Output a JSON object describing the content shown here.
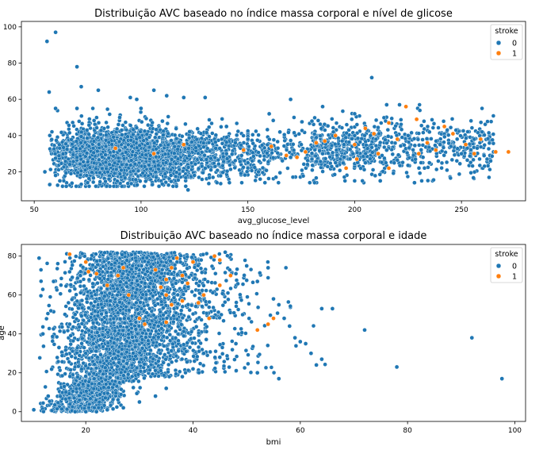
{
  "colors": {
    "stroke_0": "#1f77b4",
    "stroke_1": "#ff7f0e",
    "point_edge": "#ffffff"
  },
  "chart_data": [
    {
      "type": "scatter",
      "title": "Distribuição AVC baseado no índice massa corporal e nível de glicose",
      "xlabel": "avg_glucose_level",
      "ylabel": "",
      "xlim": [
        44,
        280
      ],
      "ylim": [
        4,
        103
      ],
      "xticks": [
        50,
        100,
        150,
        200,
        250
      ],
      "yticks": [
        20,
        40,
        60,
        80,
        100
      ],
      "grid": false,
      "legend": {
        "title": "stroke",
        "entries": [
          "0",
          "1"
        ],
        "position": "top-right"
      },
      "series": [
        {
          "name": "0",
          "color": "#1f77b4",
          "points": [
            [
              56,
              92
            ],
            [
              57,
              64
            ],
            [
              60,
              97
            ],
            [
              70,
              78
            ],
            [
              72,
              67
            ],
            [
              80,
              65
            ],
            [
              95,
              61
            ],
            [
              98,
              60
            ],
            [
              106,
              65
            ],
            [
              112,
              62
            ],
            [
              120,
              61
            ],
            [
              130,
              61
            ],
            [
              170,
              60
            ],
            [
              208,
              72
            ],
            [
              215,
              57
            ],
            [
              221,
              57
            ],
            [
              160,
              52
            ],
            [
              185,
              56
            ],
            [
              180,
              48
            ],
            [
              190,
              42
            ],
            [
              200,
              40
            ],
            [
              210,
              38
            ],
            [
              240,
              35
            ],
            [
              256,
              38
            ],
            [
              265,
              31
            ],
            [
              272,
              31
            ],
            [
              262,
              27
            ],
            [
              200,
              52
            ],
            [
              180,
              27
            ],
            [
              150,
              25
            ],
            [
              140,
              45
            ],
            [
              125,
              18
            ],
            [
              122,
              10
            ],
            [
              114,
              18
            ],
            [
              60,
              18
            ],
            [
              62,
              15
            ],
            [
              55,
              20
            ],
            [
              65,
              12
            ],
            [
              75,
              14
            ],
            [
              85,
              16
            ],
            [
              90,
              50
            ],
            [
              110,
              48
            ],
            [
              100,
              55
            ],
            [
              60,
              55
            ],
            [
              70,
              55
            ],
            [
              205,
              45
            ],
            [
              195,
              35
            ],
            [
              232,
              28
            ],
            [
              228,
              14
            ],
            [
              212,
              15
            ],
            [
              245,
              34
            ],
            [
              235,
              42
            ],
            [
              160,
              33
            ],
            [
              170,
              28
            ],
            [
              150,
              38
            ],
            [
              140,
              30
            ],
            [
              130,
              22
            ],
            [
              135,
              33
            ],
            [
              155,
              20
            ],
            [
              165,
              42
            ],
            [
              175,
              35
            ],
            [
              185,
              30
            ],
            [
              195,
              28
            ],
            [
              205,
              25
            ],
            [
              215,
              32
            ],
            [
              225,
              40
            ],
            [
              235,
              25
            ],
            [
              250,
              30
            ]
          ]
        },
        {
          "name": "1",
          "color": "#ff7f0e",
          "points": [
            [
              173,
              28
            ],
            [
              177,
              31
            ],
            [
              186,
              37
            ],
            [
              191,
              40
            ],
            [
              196,
              22
            ],
            [
              201,
              27
            ],
            [
              205,
              44
            ],
            [
              209,
              41
            ],
            [
              216,
              47
            ],
            [
              224,
              56
            ],
            [
              229,
              49
            ],
            [
              234,
              36
            ],
            [
              238,
              32
            ],
            [
              242,
              45
            ],
            [
              246,
              41
            ],
            [
              252,
              35
            ],
            [
              256,
              30
            ],
            [
              259,
              38
            ],
            [
              266,
              31
            ],
            [
              272,
              31
            ],
            [
              216,
              22
            ],
            [
              211,
              30
            ],
            [
              182,
              36
            ],
            [
              168,
              29
            ],
            [
              161,
              34
            ],
            [
              148,
              32
            ],
            [
              120,
              35
            ],
            [
              106,
              30
            ],
            [
              88,
              33
            ],
            [
              200,
              35
            ],
            [
              220,
              38
            ],
            [
              230,
              30
            ]
          ]
        }
      ]
    },
    {
      "type": "scatter",
      "title": "Distribuição AVC baseado no índice massa corporal e idade",
      "xlabel": "bmi",
      "ylabel": "age",
      "xlim": [
        8,
        102
      ],
      "ylim": [
        -5,
        86
      ],
      "xticks": [
        20,
        40,
        60,
        80,
        100
      ],
      "yticks": [
        0,
        20,
        40,
        60,
        80
      ],
      "grid": false,
      "legend": {
        "title": "stroke",
        "entries": [
          "0",
          "1"
        ],
        "position": "top-right"
      },
      "series": [
        {
          "name": "0",
          "color": "#1f77b4",
          "points": [
            [
              10.3,
              1
            ],
            [
              11.3,
              79
            ],
            [
              12,
              40
            ],
            [
              13,
              8
            ],
            [
              14,
              67
            ],
            [
              15,
              33
            ],
            [
              16,
              13
            ],
            [
              17,
              45
            ],
            [
              18,
              50
            ],
            [
              19,
              70
            ],
            [
              20,
              30
            ],
            [
              46,
              82
            ],
            [
              48,
              71
            ],
            [
              50,
              75
            ],
            [
              52,
              67
            ],
            [
              54,
              74
            ],
            [
              55,
              58
            ],
            [
              56,
              55
            ],
            [
              57,
              48
            ],
            [
              58,
              44
            ],
            [
              59,
              38
            ],
            [
              60,
              36
            ],
            [
              61,
              35
            ],
            [
              62,
              30
            ],
            [
              64,
              53
            ],
            [
              66,
              53
            ],
            [
              64,
              27
            ],
            [
              63,
              24
            ],
            [
              72,
              42
            ],
            [
              78,
              23
            ],
            [
              92,
              38
            ],
            [
              97.6,
              17
            ],
            [
              56,
              17
            ],
            [
              52,
              20
            ],
            [
              48,
              35
            ],
            [
              45,
              28
            ],
            [
              42,
              30
            ],
            [
              40,
              22
            ],
            [
              38,
              18
            ],
            [
              35,
              12
            ],
            [
              33,
              8
            ],
            [
              30,
              5
            ],
            [
              27,
              2
            ],
            [
              24,
              1
            ],
            [
              22,
              0
            ],
            [
              20,
              0
            ],
            [
              18,
              0
            ]
          ]
        },
        {
          "name": "1",
          "color": "#ff7f0e",
          "points": [
            [
              17,
              81
            ],
            [
              20,
              77
            ],
            [
              20.5,
              72
            ],
            [
              26,
              70
            ],
            [
              27,
              74
            ],
            [
              33,
              73
            ],
            [
              34,
              64
            ],
            [
              35,
              68
            ],
            [
              36,
              74
            ],
            [
              37,
              79
            ],
            [
              38,
              70
            ],
            [
              39,
              66
            ],
            [
              40,
              77
            ],
            [
              44,
              80
            ],
            [
              45,
              78
            ],
            [
              47,
              70
            ],
            [
              45,
              65
            ],
            [
              42,
              60
            ],
            [
              38,
              57
            ],
            [
              35,
              60
            ],
            [
              30,
              48
            ],
            [
              35,
              46
            ],
            [
              41,
              56
            ],
            [
              31,
              45
            ],
            [
              55,
              48
            ],
            [
              54,
              45
            ],
            [
              52,
              42
            ],
            [
              36,
              55
            ],
            [
              28,
              60
            ],
            [
              24,
              65
            ],
            [
              22,
              71
            ],
            [
              43,
              48
            ]
          ]
        }
      ]
    }
  ]
}
